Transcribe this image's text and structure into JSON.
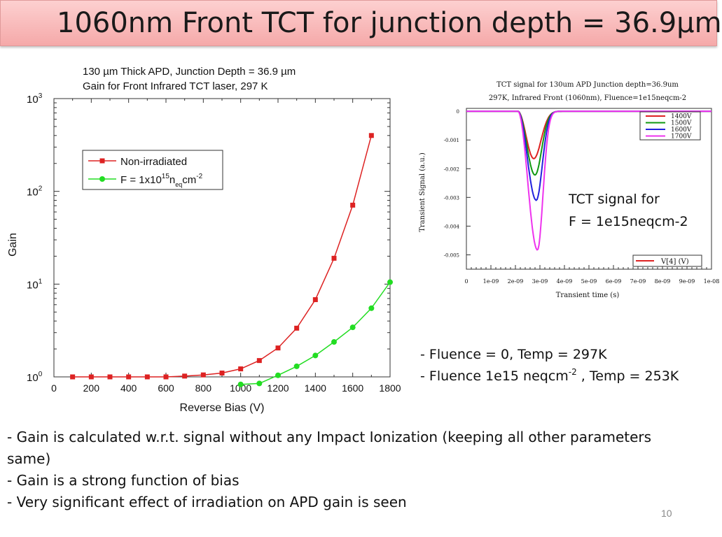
{
  "slide": {
    "title": "1060nm Front TCT for junction depth = 36.9µm",
    "page_number": "10",
    "tct_caption_line1": "TCT signal for",
    "tct_caption_line2": "F = 1e15neqcm-2",
    "fluence_note_1": "- Fluence = 0,  Temp = 297K",
    "fluence_note_2_pre": "- Fluence 1e15 neqcm",
    "fluence_note_2_sup": "-2",
    "fluence_note_2_post": " , Temp = 253K",
    "bullets": [
      "- Gain is calculated w.r.t. signal without any Impact Ionization (keeping all other parameters",
      "   same)",
      "- Gain is a strong function of bias",
      "- Very significant effect of irradiation on APD gain is seen"
    ]
  },
  "chart_data": [
    {
      "type": "line",
      "title_line1": "130 µm Thick APD, Junction Depth = 36.9 µm",
      "title_line2": "Gain for Front Infrared TCT laser, 297 K",
      "xlabel": "Reverse Bias (V)",
      "ylabel": "Gain",
      "xlim": [
        0,
        1800
      ],
      "ylim": [
        1,
        1000
      ],
      "yscale": "log",
      "xticks": [
        0,
        200,
        400,
        600,
        800,
        1000,
        1200,
        1400,
        1600,
        1800
      ],
      "yticks": [
        1,
        10,
        100,
        1000
      ],
      "legend_placement": "upper-left",
      "series": [
        {
          "name": "Non-irradiated",
          "color": "#dd2222",
          "marker": "square",
          "x": [
            100,
            200,
            300,
            400,
            500,
            600,
            700,
            800,
            900,
            1000,
            1100,
            1200,
            1300,
            1400,
            1500,
            1600,
            1700
          ],
          "y": [
            1.0,
            1.0,
            1.0,
            1.0,
            1.0,
            1.0,
            1.02,
            1.05,
            1.1,
            1.22,
            1.5,
            2.05,
            3.35,
            6.8,
            19,
            71,
            400
          ]
        },
        {
          "name_pre": "F = 1x10",
          "name_sup": "15",
          "name_n": "n",
          "name_sub": "eq",
          "name_cm": "cm",
          "name_sup2": "-2",
          "color": "#22dd22",
          "marker": "circle",
          "x": [
            1000,
            1100,
            1200,
            1300,
            1400,
            1500,
            1600,
            1700,
            1800
          ],
          "y": [
            0.83,
            0.85,
            1.04,
            1.3,
            1.7,
            2.38,
            3.42,
            5.5,
            10.5
          ]
        }
      ]
    },
    {
      "type": "line",
      "title_line1": "TCT signal for 130um APD Junction depth=36.9um",
      "title_line2": "297K, Infrared Front (1060nm), Fluence=1e15neqcm-2",
      "xlabel": "Transient time (s)",
      "ylabel": "Transient Signal (a.u.)",
      "xlim": [
        0,
        1e-08
      ],
      "ylim": [
        -0.0055,
        0.0001
      ],
      "xtick_labels": [
        "0",
        "1e-09",
        "2e-09",
        "3e-09",
        "4e-09",
        "5e-09",
        "6e-09",
        "7e-09",
        "8e-09",
        "9e-09",
        "1e-08"
      ],
      "ytick_values": [
        0,
        -0.001,
        -0.002,
        -0.003,
        -0.004,
        -0.005
      ],
      "ytick_labels": [
        "0",
        "-0.001",
        "-0.002",
        "-0.003",
        "-0.004",
        "-0.005"
      ],
      "legend_placement": "upper-right",
      "legend2_label": "V[4] (V)",
      "legend2_color": "#dd2222",
      "pulse_start_s": 2.1e-09,
      "series": [
        {
          "name": "1400V",
          "color": "#dd2222",
          "peak_time_s": 2.75e-09,
          "peak": -0.00165,
          "width_s": 4e-10
        },
        {
          "name": "1500V",
          "color": "#119911",
          "peak_time_s": 2.8e-09,
          "peak": -0.00222,
          "width_s": 3.6e-10
        },
        {
          "name": "1600V",
          "color": "#2222dd",
          "peak_time_s": 2.85e-09,
          "peak": -0.0031,
          "width_s": 3.3e-10
        },
        {
          "name": "1700V",
          "color": "#ee33ee",
          "peak_time_s": 2.9e-09,
          "peak": -0.00483,
          "width_s": 3e-10
        }
      ]
    }
  ]
}
